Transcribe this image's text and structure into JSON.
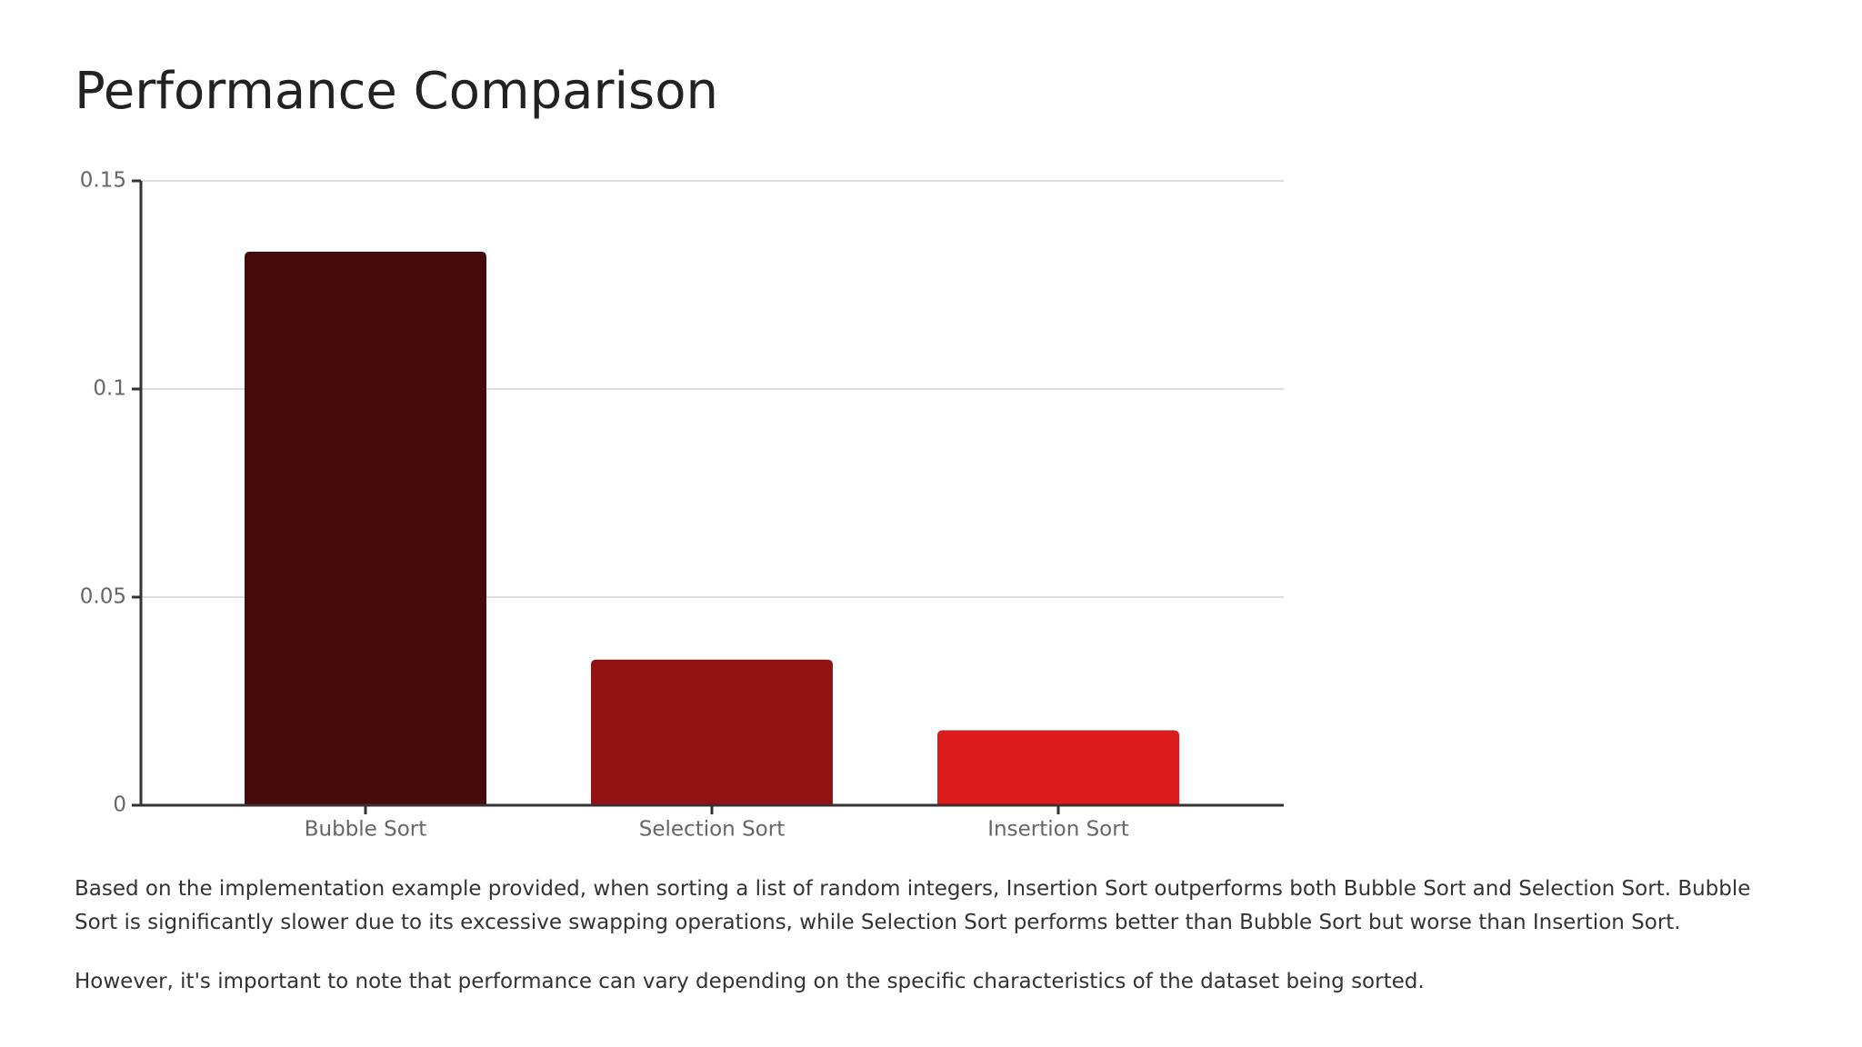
{
  "chart_data": {
    "type": "bar",
    "title": "Performance Comparison",
    "categories": [
      "Bubble Sort",
      "Selection Sort",
      "Insertion Sort"
    ],
    "values": [
      0.133,
      0.035,
      0.018
    ],
    "colors": [
      "#470a0a",
      "#931214",
      "#dc1c1c"
    ],
    "ylim": [
      0,
      0.15
    ],
    "yticks": [
      0,
      0.05,
      0.1,
      0.15
    ],
    "grid": true
  },
  "paragraphs": [
    "Based on the implementation example provided, when sorting a list of random integers, Insertion Sort outperforms both Bubble Sort and Selection Sort. Bubble Sort is significantly slower due to its excessive swapping operations, while Selection Sort performs better than Bubble Sort but worse than Insertion Sort.",
    "However, it's important to note that performance can vary depending on the specific characteristics of the dataset being sorted."
  ]
}
